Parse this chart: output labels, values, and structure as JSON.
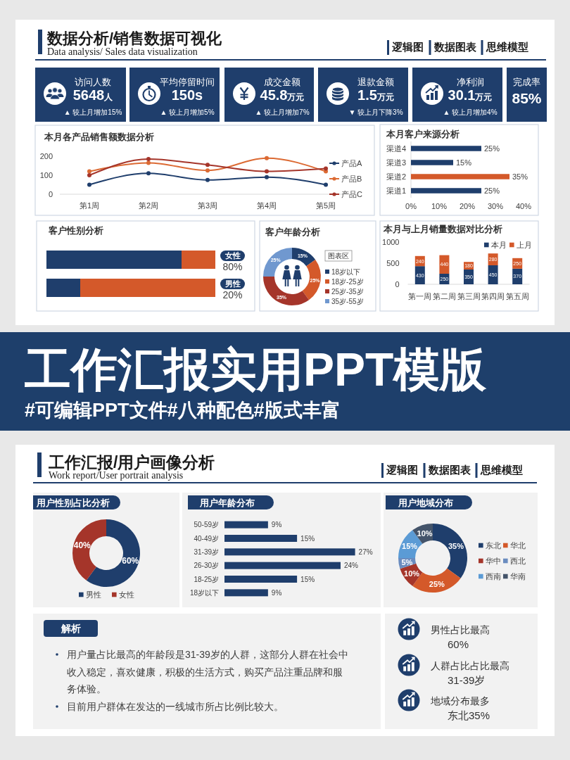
{
  "chart_data": [
    {
      "type": "other",
      "title": "数据分析/销售数据可视化",
      "subtitle": "Data analysis/ Sales data visualization",
      "annotations": [
        "逻辑图",
        "数据图表",
        "思维模型"
      ]
    },
    {
      "type": "other",
      "title": "访问人数",
      "annotations": [
        "5648人",
        "▲ 较上月增加15%"
      ]
    },
    {
      "type": "other",
      "title": "平均停留时间",
      "annotations": [
        "150s",
        "▲ 较上月增加5%"
      ]
    },
    {
      "type": "other",
      "title": "成交金额",
      "annotations": [
        "45.8万元",
        "▲ 较上月增加7%"
      ]
    },
    {
      "type": "other",
      "title": "退款金额",
      "annotations": [
        "1.5万元",
        "▼ 较上月下降3%"
      ]
    },
    {
      "type": "other",
      "title": "净利润",
      "annotations": [
        "30.1万元",
        "▲ 较上月增加4%"
      ]
    },
    {
      "type": "other",
      "title": "完成率",
      "annotations": [
        "85%"
      ]
    },
    {
      "type": "line",
      "title": "本月各产品销售额数据分析",
      "categories": [
        "第1周",
        "第2周",
        "第3周",
        "第4周",
        "第5周"
      ],
      "series": [
        {
          "name": "产品A",
          "color": "#1f3e6c",
          "values": [
            50,
            110,
            75,
            90,
            50
          ]
        },
        {
          "name": "产品B",
          "color": "#dc6a33",
          "values": [
            120,
            165,
            125,
            190,
            120
          ]
        },
        {
          "name": "产品C",
          "color": "#a5352a",
          "values": [
            100,
            185,
            155,
            120,
            135
          ]
        }
      ],
      "ylim": [
        0,
        200
      ],
      "yticks": [
        0,
        100,
        200
      ],
      "marker": "circle",
      "legend": "right"
    },
    {
      "type": "bar",
      "orientation": "horizontal",
      "title": "本月客户来源分析",
      "categories": [
        "渠道4",
        "渠道3",
        "渠道2",
        "渠道1"
      ],
      "values": [
        25,
        15,
        35,
        25
      ],
      "colors": [
        "#1f3e6c",
        "#1f3e6c",
        "#d4592a",
        "#1f3e6c"
      ],
      "value_labels": [
        "25%",
        "15%",
        "35%",
        "25%"
      ],
      "xlim": [
        0,
        40
      ],
      "xticks": [
        {
          "value": 0,
          "label": "0%"
        },
        {
          "value": 10,
          "label": "10%"
        },
        {
          "value": 20,
          "label": "20%"
        },
        {
          "value": 30,
          "label": "30%"
        },
        {
          "value": 40,
          "label": "40%"
        }
      ]
    },
    {
      "type": "bar",
      "orientation": "horizontal",
      "stacked": true,
      "title": "客户性别分析",
      "categories": [
        "女性",
        "男性"
      ],
      "series": [
        {
          "color": "#1f3e6c",
          "values": [
            80,
            20
          ],
          "value_labels": [
            "80%",
            "20%"
          ]
        },
        {
          "color": "#d4592a",
          "values": [
            20,
            80
          ]
        }
      ],
      "xlim": [
        0,
        100
      ],
      "tick_labels": "y"
    },
    {
      "type": "donut",
      "title": "客户年龄分析",
      "categories": [
        "18岁以下",
        "18岁-25岁",
        "25岁-35岁",
        "35岁-55岁"
      ],
      "values": [
        15,
        25,
        35,
        25
      ],
      "colors": [
        "#1f3e6c",
        "#d4592a",
        "#a5352a",
        "#7098cf"
      ],
      "value_labels": [
        "15%",
        "25%",
        "35%",
        "25%"
      ],
      "legend": "right",
      "annotations": [
        "图表区"
      ]
    },
    {
      "type": "bar",
      "stacked": true,
      "title": "本月与上月销量数据对比分析",
      "categories": [
        "第一周",
        "第二周",
        "第三周",
        "第四周",
        "第五周"
      ],
      "series": [
        {
          "name": "本月",
          "color": "#1f3e6c",
          "values": [
            430,
            250,
            350,
            450,
            370
          ]
        },
        {
          "name": "上月",
          "color": "#d4592a",
          "values": [
            240,
            440,
            180,
            280,
            250
          ]
        }
      ],
      "ylim": [
        0,
        1000
      ],
      "yticks": [
        0,
        500,
        1000
      ],
      "data_labels": true,
      "legend": "top right"
    },
    {
      "type": "other",
      "title": "工作汇报实用PPT模版",
      "subtitle": "#可编辑PPT文件#八种配色#版式丰富"
    },
    {
      "type": "other",
      "title": "工作汇报/用户画像分析",
      "subtitle": "Work report/User portrait analysis",
      "annotations": [
        "逻辑图",
        "数据图表",
        "思维模型"
      ]
    },
    {
      "type": "donut",
      "title": "用户性别占比分析",
      "categories": [
        "男性",
        "女性"
      ],
      "values": [
        60,
        40
      ],
      "colors": [
        "#1f3e6c",
        "#a5352a"
      ],
      "value_labels": [
        "60%",
        "40%"
      ],
      "legend": "bottom"
    },
    {
      "type": "bar",
      "orientation": "horizontal",
      "title": "用户年龄分布",
      "categories": [
        "50-59岁",
        "40-49岁",
        "31-39岁",
        "26-30岁",
        "18-25岁",
        "18岁以下"
      ],
      "values": [
        9,
        15,
        27,
        24,
        15,
        9
      ],
      "color": "#1f3e6c",
      "value_labels": [
        "9%",
        "15%",
        "27%",
        "24%",
        "15%",
        "9%"
      ]
    },
    {
      "type": "donut",
      "title": "用户地域分布",
      "categories": [
        "东北",
        "华北",
        "华中",
        "西北",
        "西南",
        "华南"
      ],
      "values": [
        35,
        25,
        10,
        5,
        15,
        10
      ],
      "colors": [
        "#1f3e6c",
        "#d4592a",
        "#a5352a",
        "#6a8cbf",
        "#5b9bd5",
        "#44546a"
      ],
      "value_labels": [
        "35%",
        "25%",
        "10%",
        "5%",
        "15%",
        "10%"
      ],
      "legend": "right"
    },
    {
      "type": "other",
      "title": "解析",
      "annotations": [
        "用户量占比最高的年龄段是31-39岁的人群，这部分人群在社会中收入稳定，喜欢健康，积极的生活方式，购买产品注重品牌和服务体验。",
        "目前用户群体在发达的一线城市所占比例比较大。"
      ]
    },
    {
      "type": "other",
      "annotations": [
        "男性占比最高",
        "60%",
        "人群占比占比最高",
        "31-39岁",
        "地域分布最多",
        "东北35%"
      ]
    }
  ]
}
